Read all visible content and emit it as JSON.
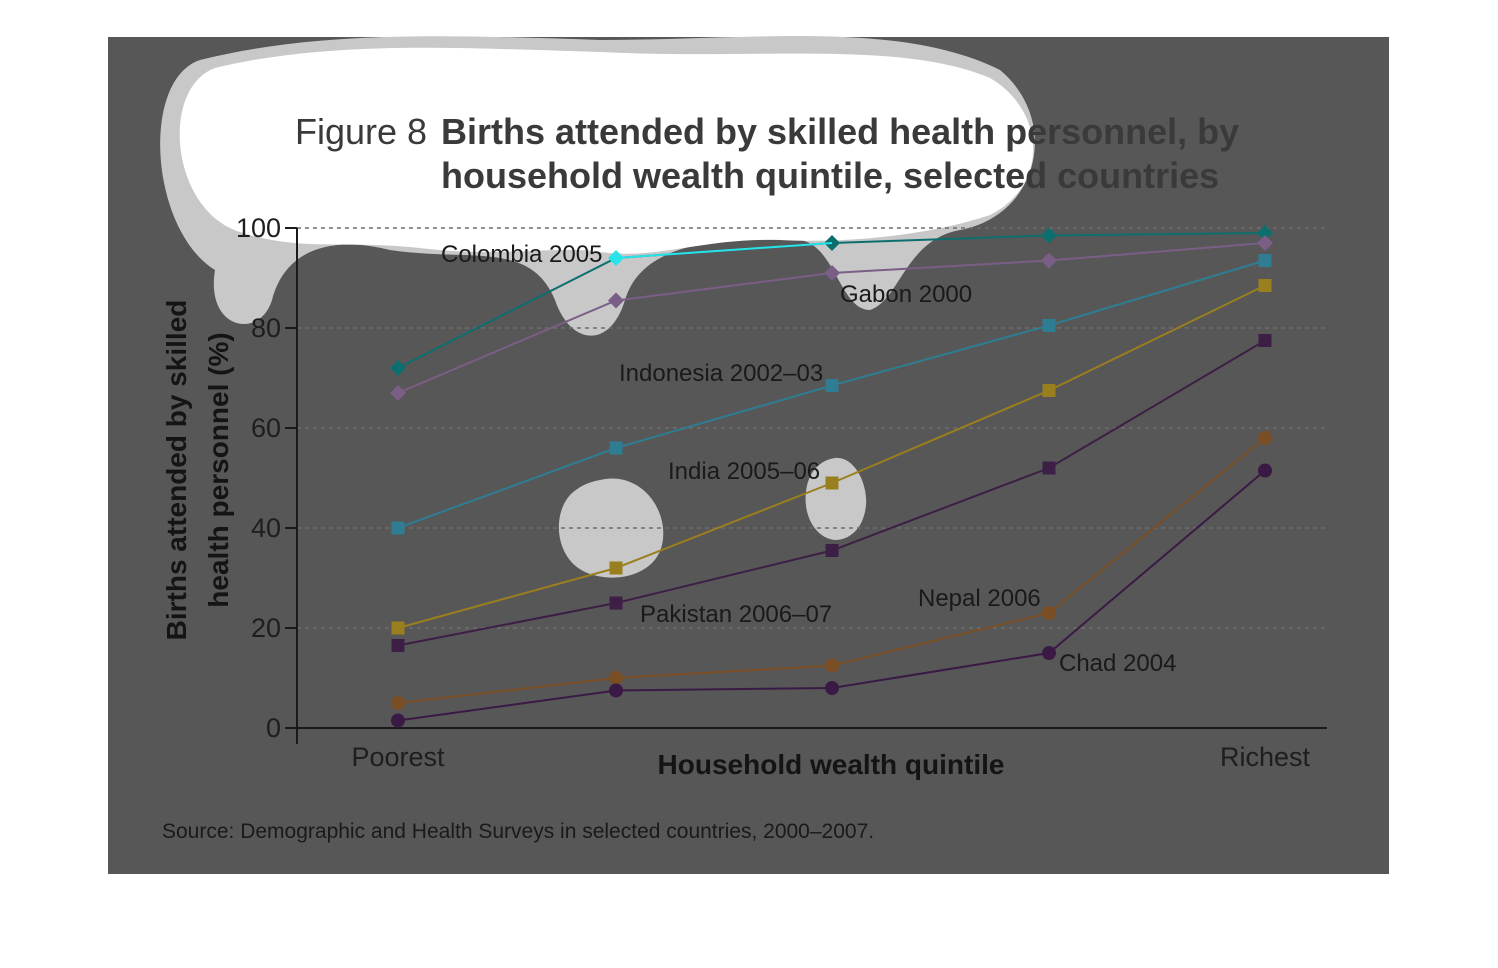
{
  "figure": {
    "number_label": "Figure 8",
    "title_line1": "Births attended by skilled health personnel, by",
    "title_line2": "household wealth quintile, selected countries",
    "source": "Source: Demographic and Health Surveys in selected countries, 2000–2007."
  },
  "chart_data": {
    "type": "line",
    "title": "Births attended by skilled health personnel, by household wealth quintile, selected countries",
    "xlabel": "Household wealth quintile",
    "ylabel_line1": "Births attended by skilled",
    "ylabel_line2": "health personnel (%)",
    "ylim": [
      0,
      100
    ],
    "yticks": [
      "0",
      "20",
      "40",
      "60",
      "80",
      "100"
    ],
    "x_tick_labels": [
      "Poorest",
      "",
      "",
      "",
      "Richest"
    ],
    "grid": true,
    "series": [
      {
        "name": "Colombia 2005",
        "color": "#0d6e6e",
        "marker": "diamond",
        "values": [
          72,
          94,
          97,
          98.5,
          99
        ]
      },
      {
        "name": "Gabon 2000",
        "color": "#7a5e86",
        "marker": "diamond",
        "values": [
          67,
          85.5,
          91,
          93.5,
          97
        ]
      },
      {
        "name": "Indonesia 2002–03",
        "color": "#2f7d92",
        "marker": "square",
        "values": [
          40,
          56,
          68.5,
          80.5,
          93.5
        ]
      },
      {
        "name": "India 2005–06",
        "color": "#9a7f1e",
        "marker": "square",
        "values": [
          20,
          32,
          49,
          67.5,
          88.5
        ]
      },
      {
        "name": "Pakistan 2006–07",
        "color": "#3d1f45",
        "marker": "square",
        "values": [
          16.5,
          25,
          35.5,
          52,
          77.5
        ]
      },
      {
        "name": "Nepal 2006",
        "color": "#7a4e25",
        "marker": "circle",
        "values": [
          5,
          10,
          12.5,
          23,
          58
        ]
      },
      {
        "name": "Chad 2004",
        "color": "#3a1a45",
        "marker": "circle",
        "values": [
          1.5,
          7.5,
          8,
          15,
          51.5
        ]
      }
    ]
  }
}
